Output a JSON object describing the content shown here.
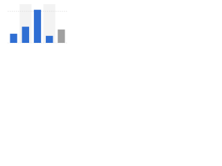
{
  "chart_data": {
    "type": "bar",
    "categories": [
      null,
      null,
      null,
      null,
      null
    ],
    "values": [
      13,
      23,
      47,
      10,
      19
    ],
    "colors": [
      "#2f6ed3",
      "#2f6ed3",
      "#2f6ed3",
      "#2f6ed3",
      "#a0a0a0"
    ],
    "ylim": [
      0,
      55
    ],
    "yticks": [
      0,
      45
    ],
    "grid": true
  }
}
